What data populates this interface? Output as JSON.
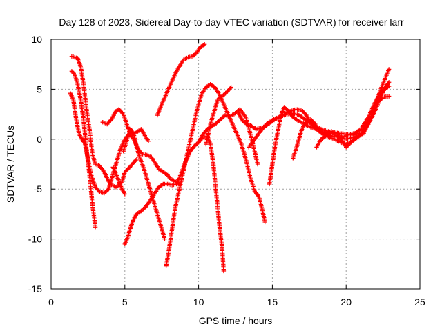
{
  "chart_data": {
    "type": "scatter",
    "title": "Day 128 of 2023, Sidereal Day-to-day VTEC variation (SDTVAR) for receiver larr",
    "xlabel": "GPS time / hours",
    "ylabel": "SDTVAR / TECUs",
    "xlim": [
      0,
      25
    ],
    "ylim": [
      -15,
      10
    ],
    "x_ticks": [
      "0",
      "5",
      "10",
      "15",
      "20",
      "25"
    ],
    "y_ticks": [
      "10",
      "5",
      "0",
      "-5",
      "-10",
      "-15"
    ],
    "grid": true,
    "marker": "plus",
    "color": "#ff0000",
    "series": [
      {
        "points": [
          [
            1.4,
            8.3
          ],
          [
            1.6,
            8.2
          ],
          [
            1.8,
            8.1
          ],
          [
            2.0,
            7.3
          ],
          [
            2.2,
            5.5
          ],
          [
            2.4,
            3.0
          ],
          [
            2.6,
            1.0
          ],
          [
            2.8,
            -1.5
          ],
          [
            3.0,
            -2.5
          ],
          [
            3.3,
            -2.7
          ],
          [
            3.6,
            -3.3
          ],
          [
            4.0,
            -4.5
          ],
          [
            4.4,
            -4.8
          ],
          [
            4.8,
            -4.3
          ],
          [
            5.0,
            -3.3
          ],
          [
            5.4,
            -2.7
          ],
          [
            5.8,
            -2.0
          ]
        ]
      },
      {
        "points": [
          [
            1.4,
            6.8
          ],
          [
            1.6,
            6.5
          ],
          [
            1.8,
            5.5
          ],
          [
            2.0,
            4.0
          ],
          [
            2.2,
            2.0
          ],
          [
            2.4,
            -1.0
          ],
          [
            2.6,
            -3.5
          ],
          [
            2.8,
            -6.5
          ],
          [
            3.0,
            -8.8
          ]
        ]
      },
      {
        "points": [
          [
            1.3,
            4.6
          ],
          [
            1.5,
            4.0
          ],
          [
            1.7,
            2.0
          ],
          [
            1.9,
            0.5
          ],
          [
            2.1,
            0.0
          ],
          [
            2.3,
            -0.5
          ],
          [
            2.5,
            -2.0
          ],
          [
            2.7,
            -3.5
          ],
          [
            3.0,
            -4.8
          ],
          [
            3.3,
            -5.3
          ],
          [
            3.6,
            -5.4
          ],
          [
            3.9,
            -5.0
          ],
          [
            4.1,
            -4.0
          ],
          [
            4.4,
            -2.5
          ],
          [
            4.7,
            -1.0
          ],
          [
            5.0,
            0.0
          ],
          [
            5.3,
            0.5
          ],
          [
            5.6,
            0.0
          ],
          [
            5.9,
            -1.0
          ],
          [
            6.2,
            -1.5
          ],
          [
            6.5,
            -1.6
          ],
          [
            6.8,
            -1.8
          ],
          [
            7.1,
            -2.5
          ],
          [
            7.3,
            -3.0
          ],
          [
            7.6,
            -3.3
          ],
          [
            7.9,
            -3.6
          ],
          [
            8.1,
            -4.0
          ],
          [
            8.4,
            -4.2
          ],
          [
            8.7,
            -4.5
          ]
        ]
      },
      {
        "points": [
          [
            3.5,
            1.7
          ],
          [
            3.8,
            1.5
          ],
          [
            4.1,
            2.0
          ],
          [
            4.4,
            2.8
          ],
          [
            4.6,
            3.0
          ],
          [
            4.9,
            2.5
          ],
          [
            5.1,
            1.6
          ],
          [
            5.3,
            0.8
          ],
          [
            5.5,
            0.5
          ],
          [
            5.8,
            0.7
          ],
          [
            6.1,
            1.0
          ],
          [
            6.3,
            0.5
          ],
          [
            6.6,
            -0.2
          ]
        ]
      },
      {
        "points": [
          [
            4.2,
            -2.8
          ],
          [
            4.4,
            -3.5
          ],
          [
            4.6,
            -4.2
          ],
          [
            4.8,
            -5.0
          ],
          [
            5.0,
            -5.5
          ]
        ]
      },
      {
        "points": [
          [
            5.0,
            -10.5
          ],
          [
            5.2,
            -9.8
          ],
          [
            5.4,
            -8.8
          ],
          [
            5.6,
            -8.0
          ],
          [
            5.8,
            -7.5
          ],
          [
            6.1,
            -7.2
          ],
          [
            6.4,
            -6.8
          ],
          [
            6.7,
            -6.2
          ],
          [
            7.0,
            -5.5
          ],
          [
            7.3,
            -4.8
          ],
          [
            7.6,
            -4.5
          ],
          [
            7.9,
            -4.5
          ],
          [
            8.2,
            -4.6
          ],
          [
            8.5,
            -4.5
          ],
          [
            8.8,
            -3.5
          ],
          [
            9.1,
            -2.3
          ],
          [
            9.4,
            -1.3
          ],
          [
            9.7,
            -0.7
          ],
          [
            10.0,
            -0.3
          ],
          [
            10.3,
            0.2
          ],
          [
            10.6,
            0.3
          ],
          [
            10.8,
            -0.5
          ],
          [
            11.0,
            -2.5
          ],
          [
            11.2,
            -5.5
          ],
          [
            11.4,
            -8.5
          ],
          [
            11.6,
            -11.0
          ],
          [
            11.7,
            -13.2
          ]
        ]
      },
      {
        "points": [
          [
            4.9,
            -1.2
          ],
          [
            5.2,
            0.2
          ],
          [
            5.4,
            1.0
          ],
          [
            5.6,
            0.5
          ],
          [
            5.8,
            -0.8
          ],
          [
            6.0,
            -1.8
          ],
          [
            6.3,
            -3.0
          ],
          [
            6.6,
            -4.5
          ],
          [
            6.9,
            -6.0
          ],
          [
            7.2,
            -7.5
          ],
          [
            7.5,
            -9.0
          ],
          [
            7.7,
            -10.0
          ]
        ]
      },
      {
        "points": [
          [
            7.2,
            2.4
          ],
          [
            7.5,
            3.5
          ],
          [
            7.8,
            4.5
          ],
          [
            8.1,
            5.5
          ],
          [
            8.4,
            6.5
          ],
          [
            8.7,
            7.3
          ],
          [
            9.0,
            8.0
          ],
          [
            9.3,
            8.2
          ],
          [
            9.6,
            8.3
          ],
          [
            9.9,
            8.7
          ],
          [
            10.1,
            9.2
          ],
          [
            10.4,
            9.5
          ]
        ]
      },
      {
        "points": [
          [
            7.8,
            -12.7
          ],
          [
            8.0,
            -11.0
          ],
          [
            8.2,
            -9.0
          ],
          [
            8.4,
            -7.0
          ],
          [
            8.7,
            -5.0
          ],
          [
            9.0,
            -3.0
          ],
          [
            9.3,
            -1.0
          ],
          [
            9.6,
            1.0
          ],
          [
            9.9,
            3.0
          ],
          [
            10.2,
            4.5
          ],
          [
            10.5,
            5.2
          ],
          [
            10.8,
            5.5
          ],
          [
            11.1,
            5.2
          ],
          [
            11.4,
            4.5
          ],
          [
            11.7,
            3.5
          ],
          [
            12.0,
            2.5
          ],
          [
            12.3,
            1.5
          ],
          [
            12.6,
            0.5
          ],
          [
            12.9,
            -0.5
          ],
          [
            13.2,
            -2.0
          ],
          [
            13.5,
            -3.8
          ],
          [
            13.8,
            -5.2
          ],
          [
            14.1,
            -5.8
          ],
          [
            14.3,
            -7.0
          ],
          [
            14.5,
            -8.3
          ]
        ]
      },
      {
        "points": [
          [
            10.5,
            -0.5
          ],
          [
            10.8,
            1.5
          ],
          [
            11.1,
            3.0
          ],
          [
            11.3,
            4.0
          ],
          [
            11.6,
            4.3
          ],
          [
            11.9,
            4.7
          ],
          [
            12.2,
            5.2
          ]
        ]
      },
      {
        "points": [
          [
            10.0,
            -0.3
          ],
          [
            10.3,
            0.5
          ],
          [
            10.6,
            1.0
          ],
          [
            10.9,
            1.3
          ],
          [
            11.2,
            1.6
          ],
          [
            11.5,
            2.0
          ],
          [
            11.8,
            2.4
          ],
          [
            12.1,
            2.3
          ],
          [
            12.4,
            2.5
          ],
          [
            12.8,
            3.0
          ],
          [
            13.2,
            2.2
          ],
          [
            13.6,
            0.0
          ],
          [
            14.0,
            -2.5
          ]
        ]
      },
      {
        "points": [
          [
            12.7,
            2.6
          ],
          [
            13.0,
            1.8
          ],
          [
            13.3,
            1.5
          ],
          [
            13.6,
            1.3
          ],
          [
            13.9,
            1.0
          ],
          [
            14.2,
            1.1
          ],
          [
            14.5,
            1.3
          ],
          [
            14.8,
            1.6
          ],
          [
            15.2,
            2.0
          ],
          [
            15.6,
            2.3
          ],
          [
            16.0,
            2.5
          ],
          [
            16.4,
            2.6
          ],
          [
            16.8,
            2.4
          ],
          [
            17.2,
            2.0
          ],
          [
            17.6,
            1.6
          ],
          [
            18.0,
            1.2
          ],
          [
            18.5,
            0.9
          ],
          [
            19.0,
            0.7
          ],
          [
            19.5,
            0.6
          ],
          [
            20.0,
            0.5
          ],
          [
            20.5,
            0.4
          ],
          [
            21.0,
            0.6
          ],
          [
            21.5,
            1.5
          ],
          [
            22.0,
            3.0
          ],
          [
            22.4,
            4.5
          ],
          [
            22.8,
            5.5
          ]
        ]
      },
      {
        "points": [
          [
            13.4,
            -0.8
          ],
          [
            13.8,
            0.0
          ],
          [
            14.2,
            0.8
          ],
          [
            14.6,
            1.5
          ],
          [
            15.0,
            1.9
          ],
          [
            15.4,
            2.2
          ],
          [
            15.8,
            2.5
          ],
          [
            16.2,
            2.8
          ],
          [
            16.6,
            3.0
          ],
          [
            17.0,
            2.9
          ],
          [
            17.3,
            2.4
          ],
          [
            17.6,
            1.6
          ],
          [
            18.0,
            1.0
          ],
          [
            18.4,
            0.5
          ],
          [
            18.8,
            0.2
          ],
          [
            19.2,
            0.0
          ],
          [
            19.6,
            -0.3
          ],
          [
            20.0,
            -0.5
          ],
          [
            20.4,
            -0.2
          ],
          [
            20.8,
            0.2
          ],
          [
            21.2,
            0.8
          ],
          [
            21.6,
            2.0
          ],
          [
            22.0,
            3.5
          ],
          [
            22.4,
            5.2
          ],
          [
            22.9,
            7.0
          ]
        ]
      },
      {
        "points": [
          [
            14.8,
            -4.5
          ],
          [
            15.0,
            -2.5
          ],
          [
            15.2,
            -0.5
          ],
          [
            15.4,
            1.0
          ],
          [
            15.6,
            2.5
          ],
          [
            15.8,
            3.2
          ],
          [
            16.1,
            2.8
          ],
          [
            16.4,
            2.2
          ],
          [
            16.8,
            1.8
          ],
          [
            17.2,
            1.5
          ],
          [
            17.6,
            1.2
          ],
          [
            18.0,
            1.0
          ],
          [
            18.5,
            0.7
          ],
          [
            19.0,
            0.3
          ],
          [
            19.5,
            0.2
          ],
          [
            20.0,
            0.0
          ],
          [
            20.5,
            0.2
          ],
          [
            21.0,
            0.4
          ],
          [
            21.5,
            1.5
          ],
          [
            22.0,
            3.0
          ],
          [
            22.5,
            4.8
          ],
          [
            22.9,
            5.7
          ]
        ]
      },
      {
        "points": [
          [
            16.4,
            -1.9
          ],
          [
            16.6,
            -1.0
          ],
          [
            16.8,
            0.0
          ],
          [
            17.0,
            1.0
          ],
          [
            17.3,
            1.8
          ],
          [
            17.6,
            2.0
          ],
          [
            17.9,
            1.5
          ],
          [
            18.2,
            0.8
          ],
          [
            18.6,
            0.5
          ],
          [
            19.0,
            0.8
          ],
          [
            19.4,
            0.5
          ],
          [
            19.8,
            0.2
          ],
          [
            20.2,
            0.5
          ],
          [
            20.6,
            0.6
          ],
          [
            21.0,
            1.0
          ],
          [
            21.5,
            2.2
          ],
          [
            22.0,
            3.8
          ],
          [
            22.4,
            4.8
          ],
          [
            22.9,
            5.3
          ]
        ]
      },
      {
        "points": [
          [
            18.0,
            -0.8
          ],
          [
            18.3,
            0.0
          ],
          [
            18.6,
            0.3
          ],
          [
            19.0,
            0.6
          ],
          [
            19.4,
            0.3
          ],
          [
            19.8,
            -0.3
          ],
          [
            20.0,
            -0.8
          ],
          [
            20.4,
            -0.2
          ],
          [
            20.8,
            0.3
          ],
          [
            21.2,
            0.6
          ],
          [
            21.6,
            2.0
          ],
          [
            22.0,
            3.5
          ],
          [
            22.5,
            4.2
          ],
          [
            22.9,
            4.3
          ]
        ]
      }
    ]
  }
}
